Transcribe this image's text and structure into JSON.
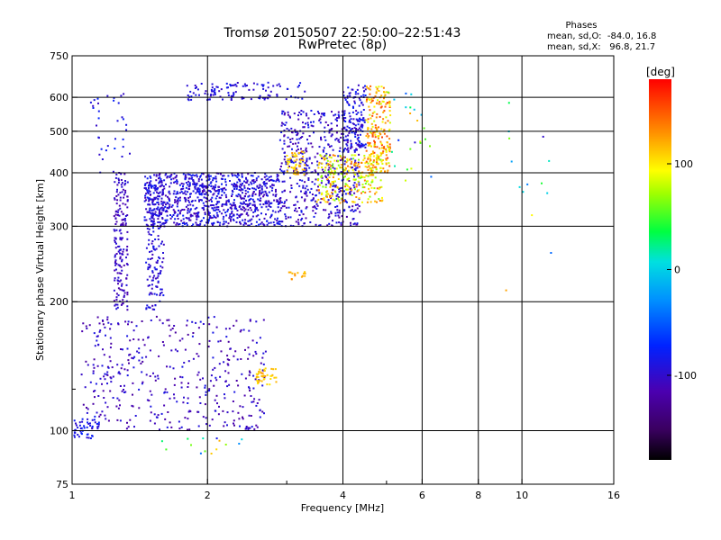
{
  "chart_data": {
    "type": "scatter",
    "title": "Tromsø 20150507 22:50:00–22:51:43",
    "subtitle": "RwPretec (8p)",
    "xlabel": "Frequency [MHz]",
    "ylabel": "Stationary phase Virtual Height [km]",
    "x_scale": "log",
    "y_scale": "log",
    "xlim": [
      1,
      16
    ],
    "ylim": [
      75,
      750
    ],
    "x_ticks": [
      1,
      2,
      4,
      6,
      8,
      10,
      16
    ],
    "x_tick_labels": [
      "1",
      "2",
      "4",
      "6",
      "8",
      "10",
      "16"
    ],
    "x_minor_ticks": [
      3,
      5
    ],
    "y_ticks": [
      75,
      100,
      200,
      300,
      400,
      500,
      600,
      750
    ],
    "y_tick_labels": [
      "75",
      "100",
      "200",
      "300",
      "400",
      "500",
      "600",
      "750"
    ],
    "y_minor_ticks": [
      125
    ],
    "grid": true,
    "info_box": {
      "heading": "Phases",
      "line1": "mean, sd,O:  -84.0, 16.8",
      "line2": "mean, sd,X:   96.8, 21.7"
    },
    "colorbar": {
      "label": "[deg]",
      "range": [
        -180,
        180
      ],
      "tick_values": [
        100,
        0,
        -100
      ],
      "tick_labels": [
        "100",
        "0",
        "-100"
      ],
      "colormap": "rainbow (black-purple-blue-cyan-green-yellow-red)"
    },
    "clusters": [
      {
        "name": "O-trace F-layer plateau",
        "x": [
          1.45,
          2.9
        ],
        "y": [
          300,
          400
        ],
        "phase": [
          -115,
          -75
        ],
        "n": 900
      },
      {
        "name": "O-trace cusp",
        "x": [
          2.9,
          4.4
        ],
        "y": [
          300,
          560
        ],
        "phase": [
          -120,
          -80
        ],
        "n": 550
      },
      {
        "name": "O-trace high",
        "x": [
          4.0,
          4.5
        ],
        "y": [
          450,
          640
        ],
        "phase": [
          -110,
          -70
        ],
        "n": 120
      },
      {
        "name": "X-trace band",
        "x": [
          3.5,
          4.9
        ],
        "y": [
          340,
          440
        ],
        "phase": [
          60,
          150
        ],
        "n": 260
      },
      {
        "name": "X-trace cusp",
        "x": [
          4.5,
          5.1
        ],
        "y": [
          400,
          640
        ],
        "phase": [
          80,
          160
        ],
        "n": 220
      },
      {
        "name": "spread column 1.25 MHz",
        "x": [
          1.24,
          1.33
        ],
        "y": [
          190,
          400
        ],
        "phase": [
          -120,
          -90
        ],
        "n": 180
      },
      {
        "name": "spread column 1.5 MHz",
        "x": [
          1.46,
          1.6
        ],
        "y": [
          190,
          380
        ],
        "phase": [
          -110,
          -80
        ],
        "n": 170
      },
      {
        "name": "E/F1 region low",
        "x": [
          1.05,
          2.7
        ],
        "y": [
          100,
          185
        ],
        "phase": [
          -125,
          -85
        ],
        "n": 420
      },
      {
        "name": "low cluster 1.0 MHz",
        "x": [
          1.0,
          1.15
        ],
        "y": [
          96,
          108
        ],
        "phase": [
          -100,
          -70
        ],
        "n": 50
      },
      {
        "name": "upper band 2 MHz",
        "x": [
          1.8,
          3.3
        ],
        "y": [
          590,
          650
        ],
        "phase": [
          -105,
          -80
        ],
        "n": 110
      },
      {
        "name": "X echo 3 MHz",
        "x": [
          3.0,
          3.3
        ],
        "y": [
          395,
          450
        ],
        "phase": [
          90,
          130
        ],
        "n": 50
      },
      {
        "name": "X echo 3.1 MHz low",
        "x": [
          3.0,
          3.3
        ],
        "y": [
          225,
          235
        ],
        "phase": [
          110,
          130
        ],
        "n": 14
      },
      {
        "name": "X echo 2.5 MHz",
        "x": [
          2.55,
          2.85
        ],
        "y": [
          128,
          140
        ],
        "phase": [
          100,
          130
        ],
        "n": 40
      },
      {
        "name": "scattered 1.1-1.3 MHz",
        "x": [
          1.1,
          1.35
        ],
        "y": [
          400,
          620
        ],
        "phase": [
          -110,
          -70
        ],
        "n": 35
      },
      {
        "name": "sparse 5-7 MHz",
        "x": [
          5.0,
          6.6
        ],
        "y": [
          380,
          630
        ],
        "phase": [
          -100,
          140
        ],
        "n": 25
      },
      {
        "name": "sparse 8-13 MHz",
        "x": [
          8.5,
          12.8
        ],
        "y": [
          210,
          610
        ],
        "phase": [
          -110,
          140
        ],
        "n": 14
      },
      {
        "name": "low isolated",
        "x": [
          1.5,
          2.4
        ],
        "y": [
          88,
          96
        ],
        "phase": [
          -120,
          120
        ],
        "n": 14
      }
    ]
  }
}
